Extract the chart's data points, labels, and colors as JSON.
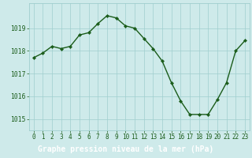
{
  "x": [
    0,
    1,
    2,
    3,
    4,
    5,
    6,
    7,
    8,
    9,
    10,
    11,
    12,
    13,
    14,
    15,
    16,
    17,
    18,
    19,
    20,
    21,
    22,
    23
  ],
  "y": [
    1017.7,
    1017.9,
    1018.2,
    1018.1,
    1018.2,
    1018.7,
    1018.8,
    1019.2,
    1019.55,
    1019.45,
    1019.1,
    1019.0,
    1018.55,
    1018.1,
    1017.55,
    1016.6,
    1015.8,
    1015.2,
    1015.2,
    1015.2,
    1015.85,
    1016.6,
    1018.0,
    1018.45
  ],
  "line_color": "#1a5c1a",
  "marker": "D",
  "marker_size": 2.2,
  "bg_color": "#ceeaea",
  "grid_color": "#a0cece",
  "title": "Graphe pression niveau de la mer (hPa)",
  "title_bg": "#2d6e2d",
  "title_color": "#ffffff",
  "ylim": [
    1014.5,
    1020.1
  ],
  "xlim": [
    -0.5,
    23.5
  ],
  "yticks": [
    1015,
    1016,
    1017,
    1018,
    1019
  ],
  "xtick_labels": [
    "0",
    "1",
    "2",
    "3",
    "4",
    "5",
    "6",
    "7",
    "8",
    "9",
    "10",
    "11",
    "12",
    "13",
    "14",
    "15",
    "16",
    "17",
    "18",
    "19",
    "20",
    "21",
    "22",
    "23"
  ],
  "tick_color": "#1a5c1a",
  "tick_fontsize": 5.5,
  "ytick_fontsize": 5.8,
  "title_fontsize": 7.0,
  "line_width": 1.0
}
